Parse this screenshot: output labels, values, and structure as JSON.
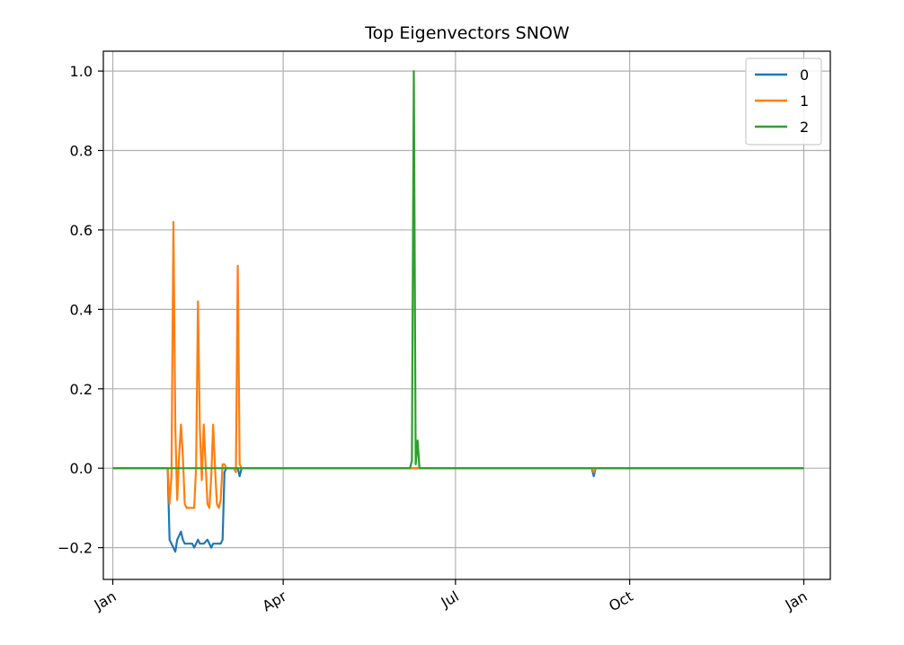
{
  "chart_data": {
    "type": "line",
    "title": "Top Eigenvectors SNOW",
    "xlabel": "",
    "ylabel": "",
    "x_ticks": [
      {
        "label": "Jan",
        "day": 0
      },
      {
        "label": "Apr",
        "day": 90
      },
      {
        "label": "Jul",
        "day": 181
      },
      {
        "label": "Oct",
        "day": 273
      },
      {
        "label": "Jan",
        "day": 365
      }
    ],
    "y_ticks": [
      -0.2,
      0.0,
      0.2,
      0.4,
      0.6,
      0.8,
      1.0
    ],
    "y_tick_labels": [
      "−0.2",
      "0.0",
      "0.2",
      "0.4",
      "0.6",
      "0.8",
      "1.0"
    ],
    "xlim": [
      -5,
      379
    ],
    "ylim": [
      -0.28,
      1.05
    ],
    "grid": true,
    "legend_position": "top-right",
    "series": [
      {
        "name": "0",
        "color": "#1f77b4",
        "points": [
          [
            0,
            0
          ],
          [
            29,
            0
          ],
          [
            30,
            -0.18
          ],
          [
            31,
            -0.19
          ],
          [
            32,
            -0.2
          ],
          [
            33,
            -0.21
          ],
          [
            34,
            -0.18
          ],
          [
            35,
            -0.17
          ],
          [
            36,
            -0.16
          ],
          [
            37,
            -0.18
          ],
          [
            38,
            -0.19
          ],
          [
            40,
            -0.19
          ],
          [
            42,
            -0.19
          ],
          [
            43,
            -0.2
          ],
          [
            44,
            -0.19
          ],
          [
            45,
            -0.18
          ],
          [
            46,
            -0.19
          ],
          [
            48,
            -0.19
          ],
          [
            50,
            -0.18
          ],
          [
            51,
            -0.19
          ],
          [
            52,
            -0.2
          ],
          [
            53,
            -0.19
          ],
          [
            55,
            -0.19
          ],
          [
            57,
            -0.19
          ],
          [
            58,
            -0.18
          ],
          [
            59,
            -0.01
          ],
          [
            60,
            0
          ],
          [
            66,
            0
          ],
          [
            67,
            -0.02
          ],
          [
            68,
            0
          ],
          [
            253,
            0
          ],
          [
            254,
            -0.02
          ],
          [
            255,
            0
          ],
          [
            365,
            0
          ]
        ]
      },
      {
        "name": "1",
        "color": "#ff7f0e",
        "points": [
          [
            0,
            0
          ],
          [
            29,
            0
          ],
          [
            30,
            -0.09
          ],
          [
            31,
            -0.02
          ],
          [
            32,
            0.62
          ],
          [
            33,
            0.1
          ],
          [
            34,
            -0.08
          ],
          [
            35,
            0.03
          ],
          [
            36,
            0.11
          ],
          [
            37,
            0.03
          ],
          [
            38,
            -0.09
          ],
          [
            39,
            -0.1
          ],
          [
            41,
            -0.1
          ],
          [
            43,
            -0.1
          ],
          [
            44,
            0.0
          ],
          [
            45,
            0.42
          ],
          [
            46,
            0.1
          ],
          [
            47,
            -0.03
          ],
          [
            48,
            0.11
          ],
          [
            49,
            0.01
          ],
          [
            50,
            -0.09
          ],
          [
            51,
            -0.1
          ],
          [
            52,
            -0.02
          ],
          [
            53,
            0.11
          ],
          [
            54,
            0.0
          ],
          [
            55,
            -0.09
          ],
          [
            56,
            -0.1
          ],
          [
            57,
            -0.08
          ],
          [
            58,
            0.01
          ],
          [
            59,
            0.01
          ],
          [
            60,
            0
          ],
          [
            64,
            0
          ],
          [
            65,
            -0.01
          ],
          [
            66,
            0.51
          ],
          [
            67,
            0.01
          ],
          [
            68,
            0
          ],
          [
            253,
            0
          ],
          [
            254,
            -0.01
          ],
          [
            255,
            0
          ],
          [
            365,
            0
          ]
        ]
      },
      {
        "name": "2",
        "color": "#2ca02c",
        "points": [
          [
            0,
            0
          ],
          [
            157,
            0
          ],
          [
            158,
            0.02
          ],
          [
            159,
            1.0
          ],
          [
            160,
            0.01
          ],
          [
            161,
            0.07
          ],
          [
            162,
            0
          ],
          [
            365,
            0
          ]
        ]
      }
    ]
  }
}
